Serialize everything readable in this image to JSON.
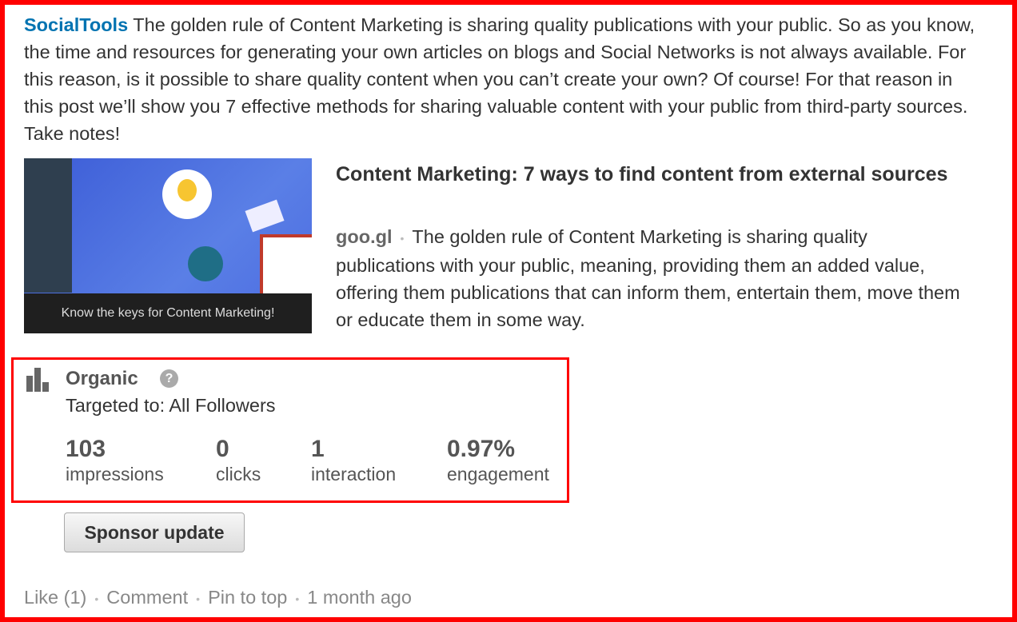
{
  "post": {
    "author": "SocialTools",
    "text": "The golden rule of Content Marketing is sharing quality publications with your public. So as you know, the time and resources for generating your own articles on blogs and Social Networks is not always available. For this reason, is it possible to share quality content when you can’t create your own? Of course! For that reason in this post we’ll show you 7 effective methods for sharing valuable content with your public from third-party sources. Take notes!"
  },
  "link": {
    "image_caption": "Know the keys for Content Marketing!",
    "title": "Content Marketing: 7 ways to find content from external sources",
    "domain": "goo.gl",
    "description": "The golden rule of Content Marketing is sharing quality publications with your public, meaning, providing them an added value, offering them publications that can inform them, entertain them, move them or educate them in some way."
  },
  "stats": {
    "icon": "bar-chart-icon",
    "title": "Organic",
    "help_icon": "?",
    "targeted": "Targeted to: All Followers",
    "items": [
      {
        "value": "103",
        "label": "impressions"
      },
      {
        "value": "0",
        "label": "clicks"
      },
      {
        "value": "1",
        "label": "interaction"
      },
      {
        "value": "0.97%",
        "label": "engagement"
      }
    ]
  },
  "sponsor_label": "Sponsor update",
  "actions": {
    "like": "Like (1)",
    "comment": "Comment",
    "pin": "Pin to top",
    "time": "1 month ago",
    "separator": "•"
  },
  "colors": {
    "highlight": "#ff0000",
    "author": "#0073b1"
  }
}
